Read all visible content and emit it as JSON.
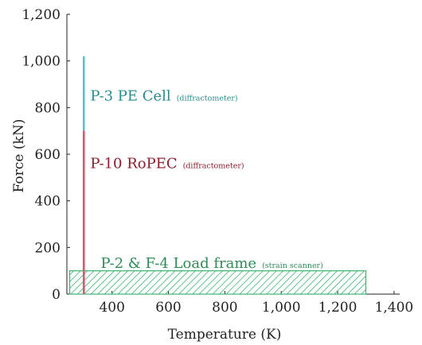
{
  "chart_data": {
    "type": "bar",
    "xlabel": "Temperature (K)",
    "ylabel": "Force (kN)",
    "xlim": [
      240,
      1420
    ],
    "ylim": [
      0,
      1200
    ],
    "x_ticks": [
      {
        "value": 400,
        "label": "400"
      },
      {
        "value": 600,
        "label": "600"
      },
      {
        "value": 800,
        "label": "800"
      },
      {
        "value": 1000,
        "label": "1,000"
      },
      {
        "value": 1200,
        "label": "1,200"
      },
      {
        "value": 1400,
        "label": "1,400"
      }
    ],
    "y_ticks": [
      {
        "value": 0,
        "label": "0"
      },
      {
        "value": 200,
        "label": "200"
      },
      {
        "value": 400,
        "label": "400"
      },
      {
        "value": 600,
        "label": "600"
      },
      {
        "value": 800,
        "label": "800"
      },
      {
        "value": 1000,
        "label": "1,000"
      },
      {
        "value": 1200,
        "label": "1,200"
      }
    ],
    "regions": [
      {
        "kind": "hatched-rect",
        "x_range": [
          250,
          1300
        ],
        "y_range": [
          0,
          100
        ],
        "color": "#3cb371",
        "label_main": "P-2 & F-4 Load frame",
        "label_sub": "(strain scanner)",
        "label_color": "#2e8b57",
        "label_at": {
          "x": 360,
          "y": 112
        }
      },
      {
        "kind": "vline",
        "x": 300,
        "y_range": [
          700,
          1020
        ],
        "color": "#5bc0d0",
        "label_main": "P-3 PE Cell",
        "label_sub": "(diffractometer)",
        "label_color": "#2a8a8f",
        "label_at": {
          "x": 323,
          "y": 830
        }
      },
      {
        "kind": "vline",
        "x": 300,
        "y_range": [
          0,
          700
        ],
        "color": "#d9586a",
        "label_main": "P-10 RoPEC",
        "label_sub": "(diffractometer)",
        "label_color": "#8b1a2b",
        "label_at": {
          "x": 323,
          "y": 540
        }
      }
    ]
  }
}
